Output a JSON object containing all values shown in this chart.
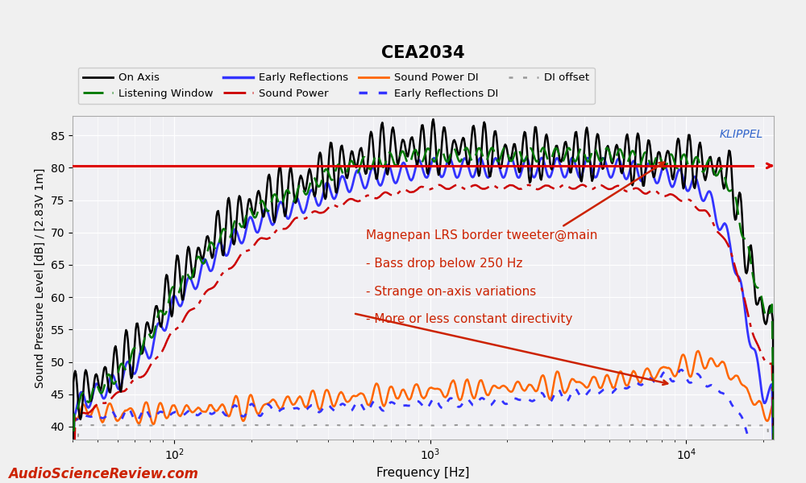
{
  "title": "CEA2034",
  "xlabel": "Frequency [Hz]",
  "ylabel": "Sound Pressure Level [dB] / [2.83V 1m]",
  "xlim": [
    40,
    22000
  ],
  "ylim": [
    38,
    88
  ],
  "yticks": [
    40,
    45,
    50,
    55,
    60,
    65,
    70,
    75,
    80,
    85
  ],
  "background_color": "#f0f0f0",
  "plot_bg_color": "#f0f0f4",
  "grid_color": "#ffffff",
  "sound_power_line_y": 80.3,
  "annotation_color": "#cc2200",
  "klippel_color": "#3366cc",
  "asr_color": "#cc2200",
  "on_axis_color": "#000000",
  "lw_color": "#007700",
  "er_color": "#3333ff",
  "sp_color": "#cc0000",
  "spdi_color": "#ff6600",
  "erdi_color": "#3333ff",
  "dioff_color": "#999999"
}
